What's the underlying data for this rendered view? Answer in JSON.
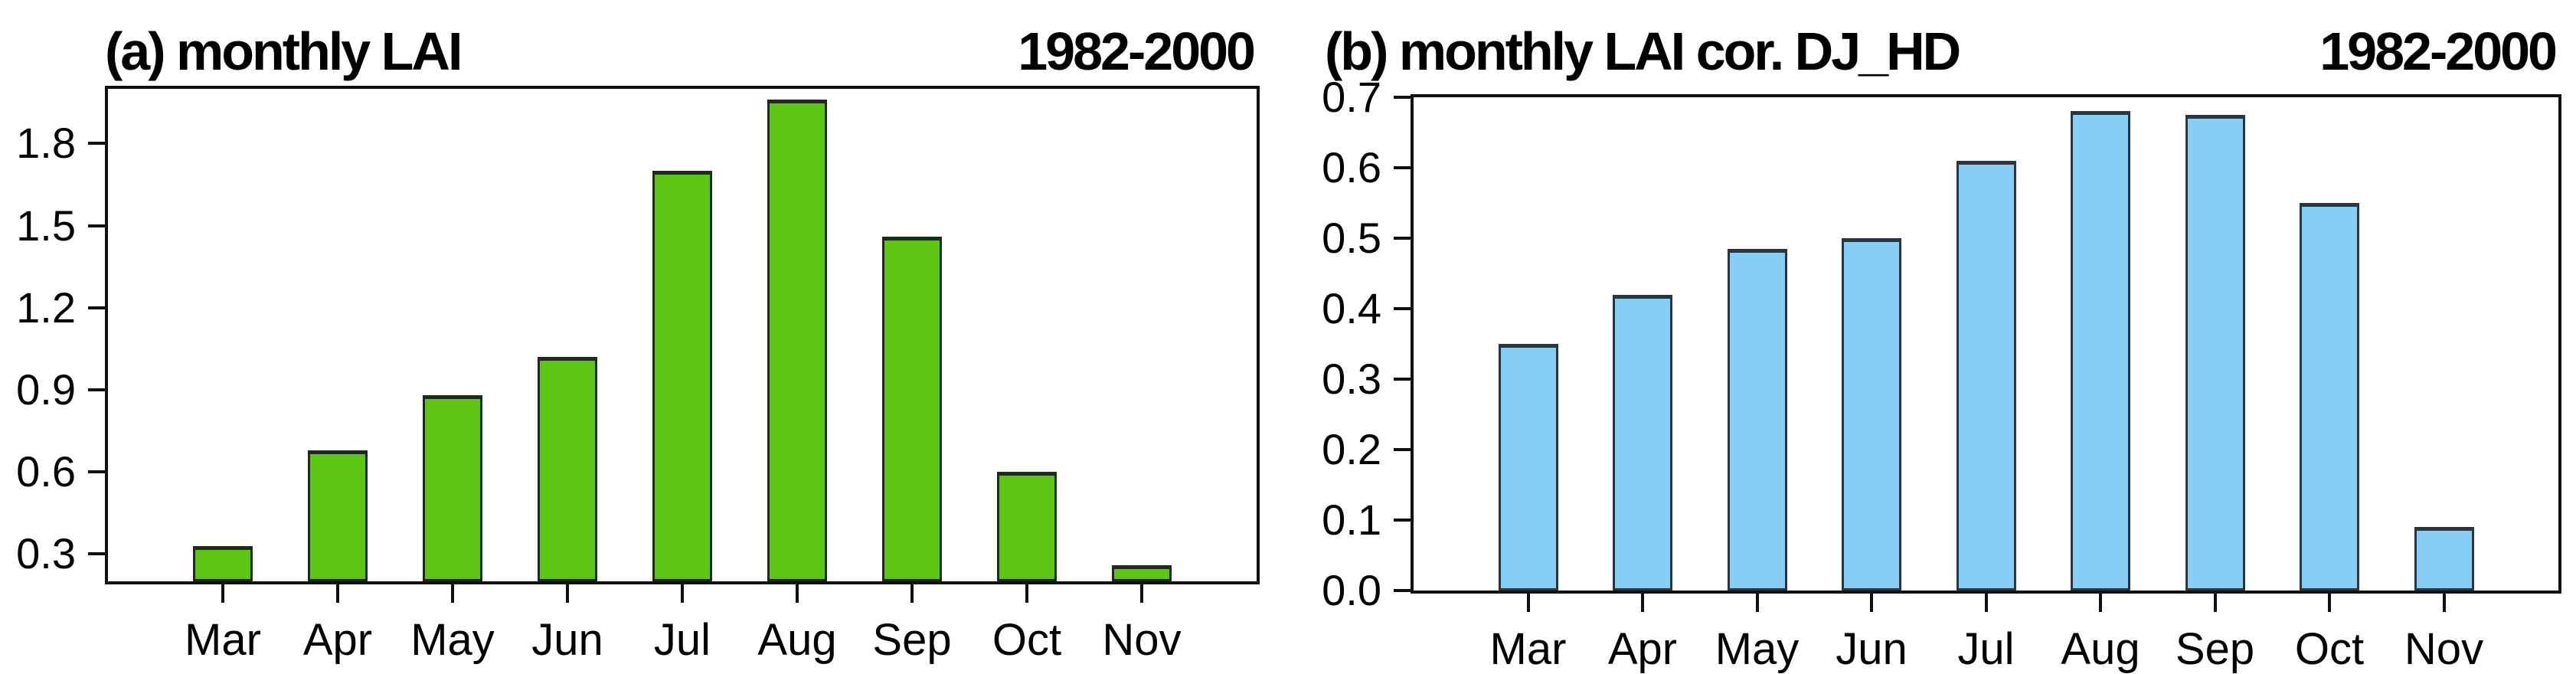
{
  "figure": {
    "background": "#ffffff",
    "frame_color": "#111111",
    "text_color": "#000000"
  },
  "chart_data": [
    {
      "type": "bar",
      "title": "(a) monthly LAI",
      "period_label": "1982-2000",
      "xlabel": "",
      "ylabel": "",
      "categories": [
        "Mar",
        "Apr",
        "May",
        "Jun",
        "Jul",
        "Aug",
        "Sep",
        "Oct",
        "Nov"
      ],
      "values": [
        0.33,
        0.68,
        0.88,
        1.02,
        1.7,
        1.96,
        1.46,
        0.6,
        0.26
      ],
      "ylim": [
        0.2,
        2.0
      ],
      "yticks": [
        0.3,
        0.6,
        0.9,
        1.2,
        1.5,
        1.8
      ],
      "ytick_decimals": 1,
      "bar_color": "#5dc612",
      "bar_edge_color": "#1f2a1f",
      "grid": false,
      "legend": "none"
    },
    {
      "type": "bar",
      "title": "(b) monthly LAI cor. DJ_HD",
      "period_label": "1982-2000",
      "xlabel": "",
      "ylabel": "",
      "categories": [
        "Mar",
        "Apr",
        "May",
        "Jun",
        "Jul",
        "Aug",
        "Sep",
        "Oct",
        "Nov"
      ],
      "values": [
        0.35,
        0.42,
        0.485,
        0.5,
        0.61,
        0.68,
        0.675,
        0.55,
        0.09
      ],
      "ylim": [
        0.0,
        0.7
      ],
      "yticks": [
        0.0,
        0.1,
        0.2,
        0.3,
        0.4,
        0.5,
        0.6,
        0.7
      ],
      "ytick_decimals": 1,
      "bar_color": "#87cef5",
      "bar_edge_color": "#2a3640",
      "grid": false,
      "legend": "none"
    }
  ]
}
